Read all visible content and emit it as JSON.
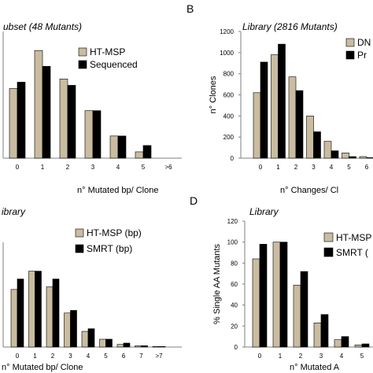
{
  "colors": {
    "series_a": "#c9bca0",
    "series_b": "#000000",
    "axis": "#7f7f7f"
  },
  "chart_data": [
    {
      "panel": "",
      "type": "bar",
      "title": "ubset (48 Mutants)",
      "xlabel": "n° Mutated bp/ Clone",
      "ylabel": "",
      "categories": [
        "0",
        "1",
        "2",
        "3",
        "4",
        "5",
        ">6"
      ],
      "ylim": [
        0,
        40
      ],
      "series": [
        {
          "name": "HT-MSP",
          "values": [
            22,
            34,
            25,
            15,
            7,
            2,
            0
          ]
        },
        {
          "name": "Sequenced",
          "values": [
            24,
            29,
            23,
            15,
            7,
            4,
            0
          ]
        }
      ],
      "legend_position": "top-right"
    },
    {
      "panel": "B",
      "type": "bar",
      "title": "Library (2816 Mutants)",
      "xlabel": "n° Changes/ Cl",
      "ylabel": "n° Clones",
      "categories": [
        "0",
        "1",
        "2",
        "3",
        "4",
        "5",
        "6"
      ],
      "ylim": [
        0,
        1200
      ],
      "yticks": [
        "0",
        "200",
        "400",
        "600",
        "800",
        "1000",
        "1200"
      ],
      "series": [
        {
          "name": "DN",
          "values": [
            620,
            980,
            770,
            400,
            160,
            50,
            15
          ]
        },
        {
          "name": "Pr",
          "values": [
            910,
            1080,
            640,
            250,
            70,
            15,
            5
          ]
        }
      ],
      "legend_position": "top-right"
    },
    {
      "panel": "",
      "type": "bar",
      "title": "ibrary",
      "xlabel": "n° Mutated bp/ Clone",
      "ylabel": "",
      "categories": [
        "0",
        "1",
        "2",
        "3",
        "4",
        "5",
        "6",
        "7",
        ">7"
      ],
      "ylim": [
        0,
        40
      ],
      "series": [
        {
          "name": "HT-MSP (bp)",
          "values": [
            22,
            29,
            23,
            13,
            6,
            3,
            1,
            0.5,
            0.2
          ]
        },
        {
          "name": "SMRT (bp)",
          "values": [
            26,
            29,
            26,
            14,
            7,
            3,
            1.5,
            0.5,
            0.2
          ]
        }
      ],
      "legend_position": "top-right"
    },
    {
      "panel": "D",
      "type": "bar",
      "title": "Library",
      "xlabel": "n° Mutated A",
      "ylabel": "% Single AA Mutants",
      "categories": [
        "0",
        "1",
        "2",
        "3",
        "4",
        "5"
      ],
      "ylim": [
        0,
        120
      ],
      "yticks": [
        "0",
        "20",
        "40",
        "60",
        "80",
        "100",
        "120"
      ],
      "series": [
        {
          "name": "HT-MSP",
          "values": [
            84,
            100,
            59,
            23,
            7,
            2
          ]
        },
        {
          "name": "SMRT (",
          "values": [
            98,
            100,
            72,
            31,
            10,
            3
          ]
        }
      ],
      "legend_position": "top-right"
    }
  ]
}
